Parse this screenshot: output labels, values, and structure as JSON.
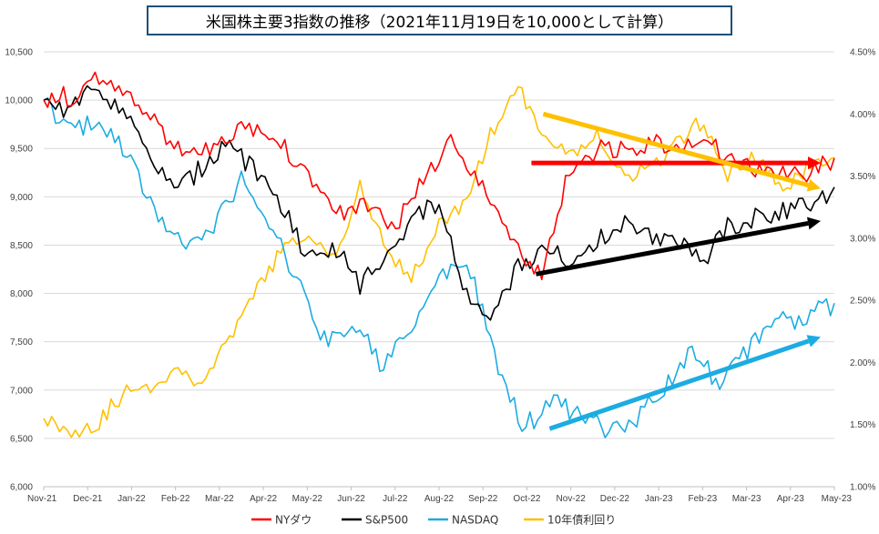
{
  "chart_data": {
    "type": "line",
    "title": "米国株主要3指数の推移（2021年11月19日を10,000として計算）",
    "x_labels": [
      "Nov-21",
      "Dec-21",
      "Jan-22",
      "Feb-22",
      "Mar-22",
      "Apr-22",
      "May-22",
      "Jun-22",
      "Jul-22",
      "Aug-22",
      "Sep-22",
      "Oct-22",
      "Nov-22",
      "Dec-22",
      "Jan-23",
      "Feb-23",
      "Mar-23",
      "Apr-23",
      "May-23"
    ],
    "y_left": {
      "min": 6000,
      "max": 10500,
      "ticks": [
        "6,000",
        "6,500",
        "7,000",
        "7,500",
        "8,000",
        "8,500",
        "9,000",
        "9,500",
        "10,000",
        "10,500"
      ]
    },
    "y_right": {
      "min": 1.0,
      "max": 4.5,
      "unit": "%",
      "ticks": [
        "1.00%",
        "1.50%",
        "2.00%",
        "2.50%",
        "3.00%",
        "3.50%",
        "4.00%",
        "4.50%"
      ]
    },
    "grid": true,
    "legend_position": "bottom",
    "series": [
      {
        "name": "NYダウ",
        "color": "#ff0000",
        "axis": "left",
        "values": [
          10000,
          10050,
          10250,
          10100,
          9650,
          9400,
          9500,
          9750,
          9550,
          9300,
          8800,
          8950,
          8700,
          9200,
          9600,
          9050,
          8500,
          8200,
          9350,
          9500,
          9450,
          9550,
          9600,
          9500,
          9350,
          9200,
          9250,
          9400
        ]
      },
      {
        "name": "S&P500",
        "color": "#000000",
        "axis": "left",
        "values": [
          10000,
          9900,
          10150,
          9900,
          9400,
          9050,
          9300,
          9600,
          9250,
          8900,
          8400,
          8500,
          8100,
          8400,
          8800,
          8900,
          8000,
          7700,
          8300,
          8450,
          8350,
          8550,
          8700,
          8600,
          8600,
          8300,
          8700,
          8800,
          8850,
          8900,
          9100
        ]
      },
      {
        "name": "NASDAQ",
        "color": "#1cace2",
        "axis": "left",
        "values": [
          10000,
          9650,
          9800,
          9400,
          8800,
          8500,
          8700,
          9200,
          8700,
          8100,
          7500,
          7700,
          7250,
          7600,
          8150,
          8350,
          7300,
          6600,
          6900,
          6700,
          6600,
          6700,
          7000,
          7400,
          7050,
          7450,
          7700,
          7750,
          7900
        ]
      },
      {
        "name": "10年債利回り",
        "color": "#ffc000",
        "axis": "right",
        "values": [
          1.55,
          1.45,
          1.5,
          1.75,
          1.8,
          1.95,
          1.85,
          2.15,
          2.55,
          2.9,
          3.0,
          2.85,
          3.4,
          2.9,
          2.7,
          3.1,
          3.3,
          3.85,
          4.2,
          3.85,
          3.65,
          3.85,
          3.5,
          3.55,
          3.75,
          3.95,
          3.5,
          3.65,
          3.4,
          3.55,
          3.65
        ]
      },
      {
        "name": "",
        "color": "#ff0000",
        "axis": "left",
        "role": "trend",
        "values": [
          9350,
          9350
        ],
        "x_range": [
          "Oct-22",
          "May-23"
        ]
      },
      {
        "name": "",
        "color": "#ffc000",
        "axis": "right",
        "role": "trend",
        "values": [
          4.0,
          3.4
        ],
        "x_range": [
          "Oct-22",
          "May-23"
        ]
      },
      {
        "name": "",
        "color": "#000000",
        "axis": "left",
        "role": "trend",
        "values": [
          8200,
          8750
        ],
        "x_range": [
          "Oct-22",
          "May-23"
        ]
      },
      {
        "name": "",
        "color": "#1cace2",
        "axis": "left",
        "role": "trend",
        "values": [
          6600,
          7550
        ],
        "x_range": [
          "Oct-22",
          "May-23"
        ]
      }
    ]
  }
}
